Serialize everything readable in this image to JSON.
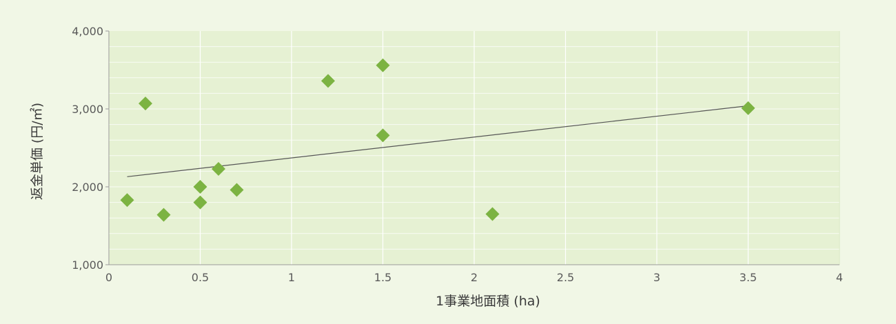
{
  "chart_data": {
    "type": "scatter",
    "title": "",
    "xlabel": "1事業地面積 (ha)",
    "ylabel": "返金単価 (円/㎡)",
    "xlim": [
      0,
      4
    ],
    "ylim": [
      1000,
      4000
    ],
    "x_ticks": [
      0,
      0.5,
      1,
      1.5,
      2,
      2.5,
      3,
      3.5,
      4
    ],
    "x_tick_labels": [
      "0",
      "0.5",
      "1",
      "1.5",
      "2",
      "2.5",
      "3",
      "3.5",
      "4"
    ],
    "y_ticks": [
      1000,
      2000,
      3000,
      4000
    ],
    "y_tick_labels": [
      "1,000",
      "2,000",
      "3,000",
      "4,000"
    ],
    "grid": true,
    "marker": "diamond",
    "colors": {
      "marker": "#7cb342",
      "trendline": "#555555",
      "grid": "#ffffff",
      "plot_bg": "#e6f1d3"
    },
    "series": [
      {
        "points": [
          {
            "x": 0.1,
            "y": 1830
          },
          {
            "x": 0.2,
            "y": 3070
          },
          {
            "x": 0.3,
            "y": 1640
          },
          {
            "x": 0.5,
            "y": 2000
          },
          {
            "x": 0.5,
            "y": 1800
          },
          {
            "x": 0.6,
            "y": 2230
          },
          {
            "x": 0.7,
            "y": 1960
          },
          {
            "x": 1.2,
            "y": 3360
          },
          {
            "x": 1.5,
            "y": 3560
          },
          {
            "x": 1.5,
            "y": 2660
          },
          {
            "x": 2.1,
            "y": 1650
          },
          {
            "x": 3.5,
            "y": 3010
          }
        ]
      }
    ],
    "trendline": {
      "x": [
        0.1,
        3.5
      ],
      "y": [
        2130,
        3040
      ]
    }
  }
}
